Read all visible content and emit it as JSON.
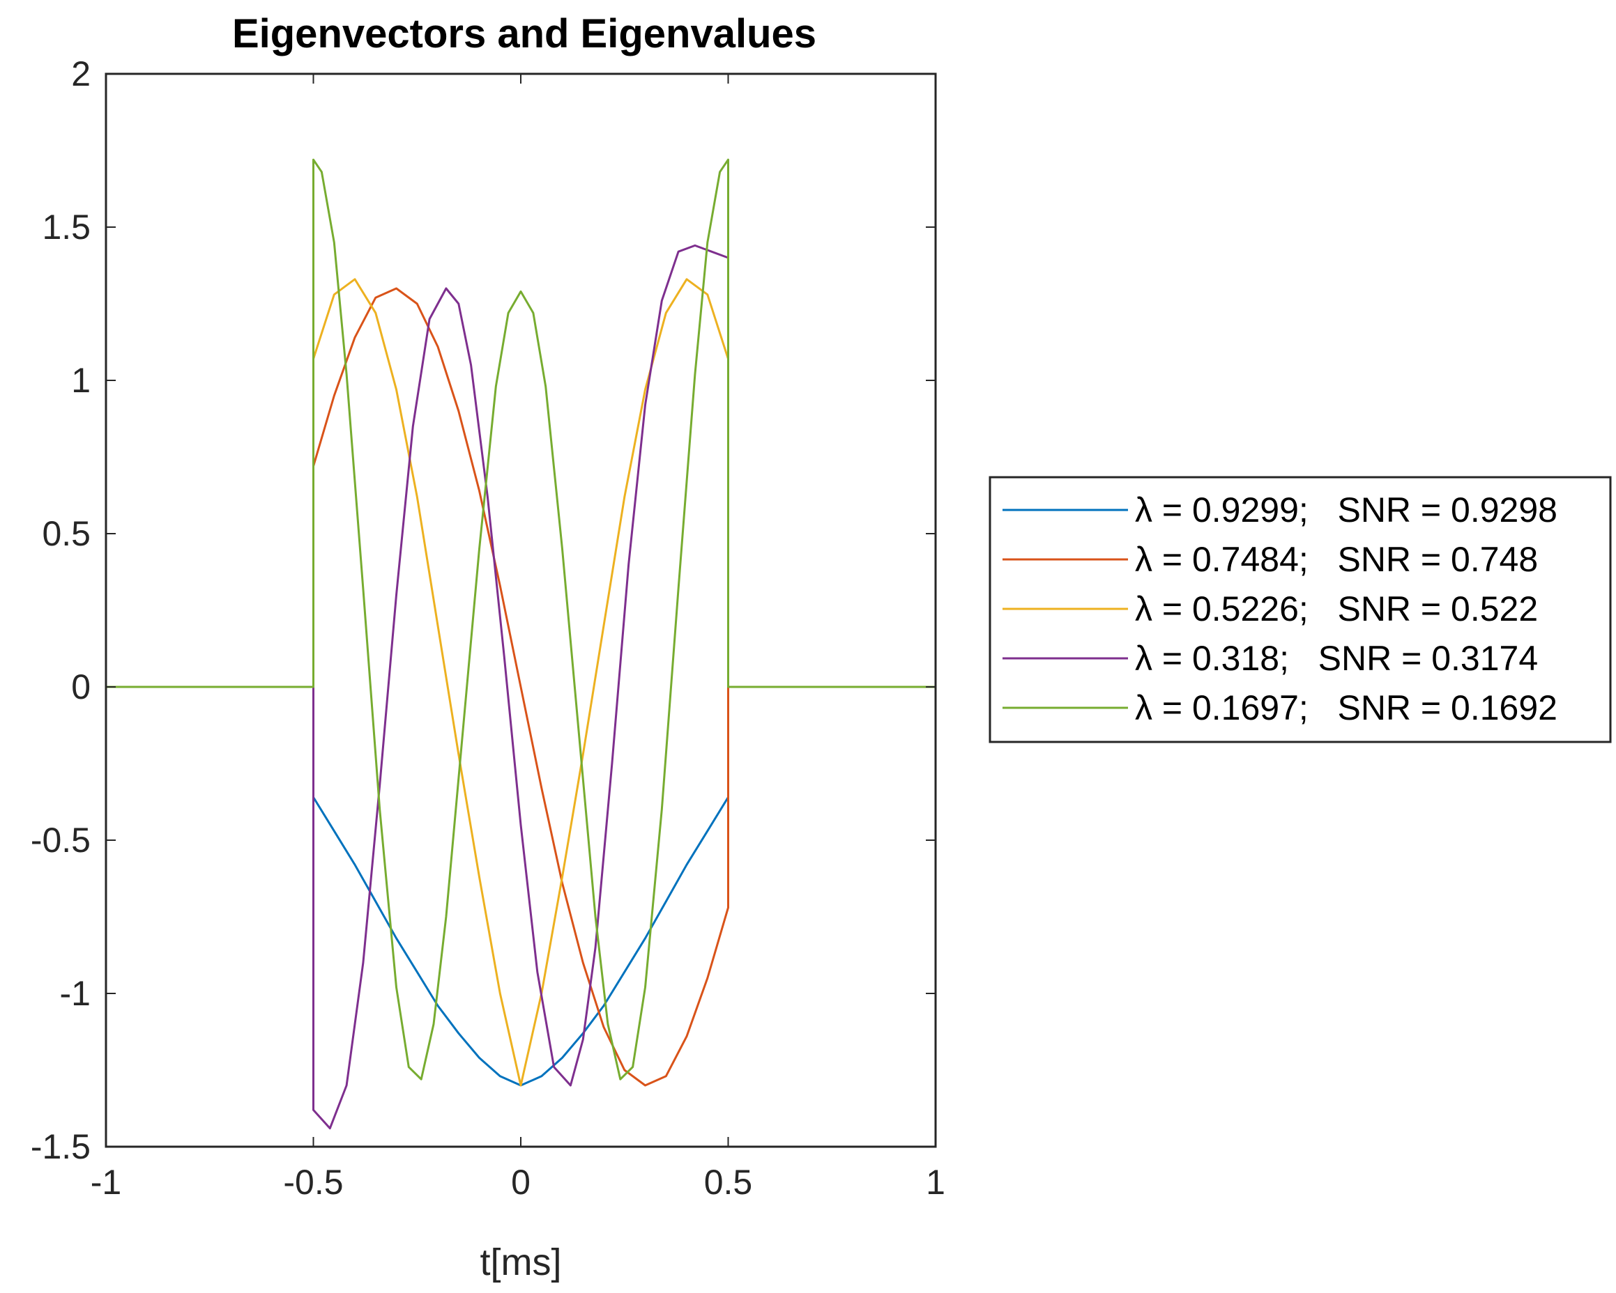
{
  "chart_data": {
    "type": "line",
    "title": "Eigenvectors and Eigenvalues",
    "xlabel": "t[ms]",
    "ylabel": "",
    "xlim": [
      -1,
      1
    ],
    "ylim": [
      -1.5,
      2
    ],
    "xticks": [
      -1,
      -0.5,
      0,
      0.5,
      1
    ],
    "xtick_labels": [
      "-1",
      "-0.5",
      "0",
      "0.5",
      "1"
    ],
    "yticks": [
      -1.5,
      -1,
      -0.5,
      0,
      0.5,
      1,
      1.5,
      2
    ],
    "ytick_labels": [
      "-1.5",
      "-1",
      "-0.5",
      "0",
      "0.5",
      "1",
      "1.5",
      "2"
    ],
    "grid": false,
    "legend_position": "right",
    "series": [
      {
        "name": "λ = 0.9299;   SNR = 0.9298",
        "color": "#0072BD",
        "x": [
          -1,
          -0.5,
          -0.5,
          -0.45,
          -0.4,
          -0.35,
          -0.3,
          -0.25,
          -0.2,
          -0.15,
          -0.1,
          -0.05,
          0,
          0.05,
          0.1,
          0.15,
          0.2,
          0.25,
          0.3,
          0.35,
          0.4,
          0.45,
          0.5,
          0.5,
          1
        ],
        "y": [
          0,
          0,
          -0.36,
          -0.47,
          -0.58,
          -0.7,
          -0.82,
          -0.93,
          -1.04,
          -1.13,
          -1.21,
          -1.27,
          -1.3,
          -1.27,
          -1.21,
          -1.13,
          -1.04,
          -0.93,
          -0.82,
          -0.7,
          -0.58,
          -0.47,
          -0.36,
          0,
          0
        ]
      },
      {
        "name": "λ = 0.7484;   SNR = 0.748",
        "color": "#D95319",
        "x": [
          -1,
          -0.5,
          -0.5,
          -0.45,
          -0.4,
          -0.35,
          -0.3,
          -0.25,
          -0.2,
          -0.15,
          -0.1,
          -0.05,
          0,
          0.05,
          0.1,
          0.15,
          0.2,
          0.25,
          0.3,
          0.35,
          0.4,
          0.45,
          0.5,
          0.5,
          1
        ],
        "y": [
          0,
          0,
          0.72,
          0.95,
          1.14,
          1.27,
          1.3,
          1.25,
          1.11,
          0.9,
          0.64,
          0.33,
          0,
          -0.33,
          -0.64,
          -0.9,
          -1.11,
          -1.25,
          -1.3,
          -1.27,
          -1.14,
          -0.95,
          -0.72,
          0,
          0
        ]
      },
      {
        "name": "λ = 0.5226;   SNR = 0.522",
        "color": "#EDB120",
        "x": [
          -1,
          -0.5,
          -0.5,
          -0.45,
          -0.4,
          -0.35,
          -0.3,
          -0.25,
          -0.2,
          -0.15,
          -0.1,
          -0.05,
          0,
          0.05,
          0.1,
          0.15,
          0.2,
          0.25,
          0.3,
          0.35,
          0.4,
          0.45,
          0.5,
          0.5,
          1
        ],
        "y": [
          0,
          0,
          1.07,
          1.28,
          1.33,
          1.22,
          0.97,
          0.62,
          0.2,
          -0.22,
          -0.62,
          -1.0,
          -1.3,
          -1.0,
          -0.62,
          -0.22,
          0.2,
          0.62,
          0.97,
          1.22,
          1.33,
          1.28,
          1.07,
          0,
          0
        ]
      },
      {
        "name": "λ = 0.318;   SNR = 0.3174",
        "color": "#7E2F8E",
        "x": [
          -1,
          -0.5,
          -0.5,
          -0.46,
          -0.42,
          -0.38,
          -0.34,
          -0.3,
          -0.26,
          -0.22,
          -0.18,
          -0.15,
          -0.12,
          -0.08,
          -0.04,
          0,
          0.04,
          0.08,
          0.12,
          0.15,
          0.18,
          0.22,
          0.26,
          0.3,
          0.34,
          0.38,
          0.42,
          0.46,
          0.5,
          0.5,
          1
        ],
        "y": [
          0,
          0,
          -1.38,
          -1.44,
          -1.3,
          -0.9,
          -0.32,
          0.3,
          0.85,
          1.2,
          1.3,
          1.25,
          1.05,
          0.62,
          0.1,
          -0.45,
          -0.93,
          -1.24,
          -1.3,
          -1.15,
          -0.85,
          -0.25,
          0.4,
          0.92,
          1.26,
          1.42,
          1.44,
          1.42,
          1.4,
          0,
          0
        ]
      },
      {
        "name": "λ = 0.1697;   SNR = 0.1692",
        "color": "#77AC30",
        "x": [
          -1,
          -0.5,
          -0.5,
          -0.48,
          -0.45,
          -0.42,
          -0.38,
          -0.34,
          -0.3,
          -0.27,
          -0.24,
          -0.21,
          -0.18,
          -0.14,
          -0.1,
          -0.06,
          -0.03,
          0,
          0.03,
          0.06,
          0.1,
          0.14,
          0.18,
          0.21,
          0.24,
          0.27,
          0.3,
          0.34,
          0.38,
          0.42,
          0.45,
          0.48,
          0.5,
          0.5,
          1
        ],
        "y": [
          0,
          0,
          1.72,
          1.68,
          1.45,
          1.02,
          0.32,
          -0.4,
          -0.98,
          -1.24,
          -1.28,
          -1.1,
          -0.75,
          -0.15,
          0.45,
          0.98,
          1.22,
          1.29,
          1.22,
          0.98,
          0.45,
          -0.15,
          -0.75,
          -1.1,
          -1.28,
          -1.24,
          -0.98,
          -0.4,
          0.32,
          1.02,
          1.45,
          1.68,
          1.72,
          0,
          0
        ]
      }
    ]
  }
}
